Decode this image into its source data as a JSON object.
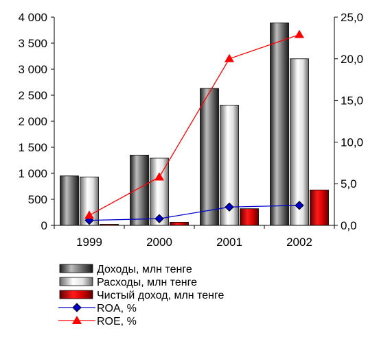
{
  "chart_data": {
    "type": "bar",
    "categories": [
      "1999",
      "2000",
      "2001",
      "2002"
    ],
    "y_left": {
      "ylim": [
        0,
        4000
      ],
      "ticks": [
        "0",
        "500",
        "1 000",
        "1 500",
        "2 000",
        "2 500",
        "3 000",
        "3 500",
        "4 000"
      ]
    },
    "y_right": {
      "ylim": [
        0,
        25
      ],
      "ticks": [
        "0,0",
        "5,0",
        "10,0",
        "15,0",
        "20,0",
        "25,0"
      ]
    },
    "series": [
      {
        "name": "Доходы, млн тенге",
        "type": "bar",
        "axis": "left",
        "values": [
          950,
          1350,
          2630,
          3890
        ]
      },
      {
        "name": "Расходы, млн тенге",
        "type": "bar",
        "axis": "left",
        "values": [
          930,
          1290,
          2310,
          3200
        ]
      },
      {
        "name": "Чистый доход, млн тенге",
        "type": "bar",
        "axis": "left",
        "values": [
          20,
          60,
          320,
          680
        ]
      },
      {
        "name": "ROA, %",
        "type": "line",
        "axis": "right",
        "marker": "diamond",
        "values": [
          0.6,
          0.8,
          2.2,
          2.4
        ]
      },
      {
        "name": "ROE, %",
        "type": "line",
        "axis": "right",
        "marker": "triangle",
        "values": [
          1.2,
          5.8,
          20.0,
          22.9
        ]
      }
    ],
    "legend_position": "bottom-left",
    "grid": false,
    "colors": {
      "income": "#4a4a4a",
      "expenses": "#cfcfcf",
      "net": "#c00000",
      "roa": "#0000cc",
      "roe": "#ff0000"
    }
  }
}
